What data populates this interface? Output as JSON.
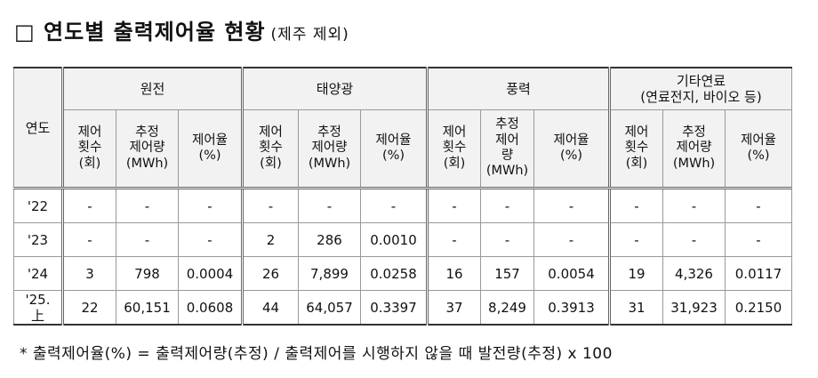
{
  "title": "□ 연도별 출력제어율 현황",
  "subtitle": "(제주 제외)",
  "table": {
    "year_header": "연도",
    "groups": [
      "원전",
      "태양광",
      "풍력",
      "기타연료\n(연료전지, 바이오 등)"
    ],
    "subheaders": [
      [
        "제어\n횟수\n(회)",
        "추정\n제어량\n(MWh)",
        "제어율\n(%)"
      ],
      [
        "제어\n횟수\n(회)",
        "추정\n제어량\n(MWh)",
        "제어율\n(%)"
      ],
      [
        "제어\n횟수\n(회)",
        "추정\n제어\n량\n(MWh)",
        "제어율\n(%)"
      ],
      [
        "제어\n횟수\n(회)",
        "추정\n제어량\n(MWh)",
        "제어율\n(%)"
      ]
    ],
    "rows": [
      [
        "'22",
        "-",
        "-",
        "-",
        "-",
        "-",
        "-",
        "-",
        "-",
        "-",
        "-",
        "-",
        "-"
      ],
      [
        "'23",
        "-",
        "-",
        "-",
        "2",
        "286",
        "0.0010",
        "-",
        "-",
        "-",
        "-",
        "-",
        "-"
      ],
      [
        "'24",
        "3",
        "798",
        "0.0004",
        "26",
        "7,899",
        "0.0258",
        "16",
        "157",
        "0.0054",
        "19",
        "4,326",
        "0.0117"
      ],
      [
        "'25.\n上",
        "22",
        "60,151",
        "0.0608",
        "44",
        "64,057",
        "0.3397",
        "37",
        "8,249",
        "0.3913",
        "31",
        "31,923",
        "0.2150"
      ]
    ]
  },
  "footnote": "* 출력제어율(%) = 출력제어량(추정) / 출력제어를 시행하지 않을 때 발전량(추정) x 100"
}
